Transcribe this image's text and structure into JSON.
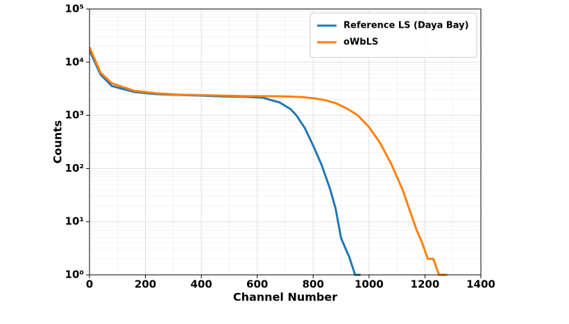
{
  "chart_data": {
    "type": "line",
    "x_label": "Channel Number",
    "y_label": "Counts",
    "xlim": [
      0,
      1400
    ],
    "xticks": [
      0,
      200,
      400,
      600,
      800,
      1000,
      1200,
      1400
    ],
    "ylim": [
      1,
      100000
    ],
    "yticks": [
      {
        "value": 1,
        "label": "10⁰"
      },
      {
        "value": 10,
        "label": "10¹"
      },
      {
        "value": 100,
        "label": "10²"
      },
      {
        "value": 1000,
        "label": "10³"
      },
      {
        "value": 10000,
        "label": "10⁴"
      },
      {
        "value": 100000,
        "label": "10⁵"
      }
    ],
    "log_y": true,
    "grid": true,
    "minor_grid": true,
    "legend": "upper right",
    "series": [
      {
        "name": "Reference LS (Daya Bay)",
        "color": "#1f77b4",
        "x": [
          0,
          40,
          80,
          160,
          240,
          320,
          400,
          480,
          560,
          620,
          640,
          680,
          720,
          740,
          770,
          800,
          830,
          860,
          880,
          900,
          930,
          950,
          970
        ],
        "values": [
          16600,
          5800,
          3550,
          2750,
          2500,
          2420,
          2350,
          2260,
          2230,
          2150,
          2000,
          1750,
          1300,
          1000,
          580,
          270,
          118,
          42,
          18,
          4.9,
          2.1,
          1,
          1
        ]
      },
      {
        "name": "oWbLS",
        "color": "#ff7f0e",
        "x": [
          0,
          40,
          80,
          160,
          240,
          320,
          400,
          480,
          560,
          620,
          680,
          720,
          760,
          800,
          840,
          880,
          920,
          960,
          1000,
          1040,
          1080,
          1120,
          1150,
          1170,
          1190,
          1210,
          1230,
          1250,
          1280
        ],
        "values": [
          19000,
          6300,
          4000,
          2900,
          2600,
          2450,
          2400,
          2350,
          2300,
          2300,
          2280,
          2250,
          2200,
          2100,
          1950,
          1700,
          1350,
          1000,
          600,
          300,
          120,
          40,
          14,
          7,
          4,
          2,
          2,
          1,
          1
        ]
      }
    ]
  }
}
